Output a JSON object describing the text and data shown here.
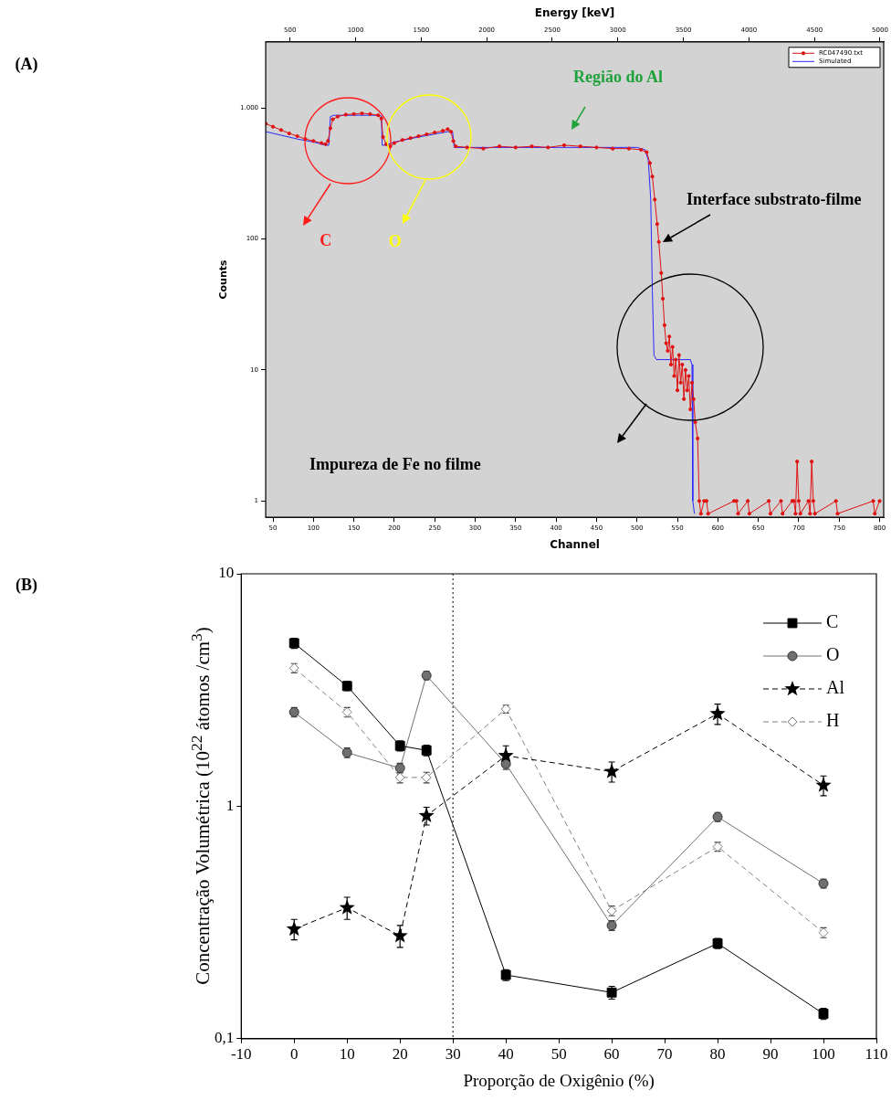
{
  "chart_data": [
    {
      "type": "line",
      "xlabel": "Channel",
      "x2label": "Energy [keV]",
      "ylabel": "Counts",
      "log": "y",
      "grid": false,
      "legend": "top right",
      "xlim": [
        41,
        805
      ],
      "xticks": [
        50,
        100,
        150,
        200,
        250,
        300,
        350,
        400,
        450,
        500,
        550,
        600,
        650,
        700,
        750,
        800
      ],
      "x2lim": [
        314,
        5028
      ],
      "x2ticks": [
        500,
        1000,
        1500,
        2000,
        2500,
        3000,
        3500,
        4000,
        4500,
        5000
      ],
      "ylim": [
        0.75,
        3200
      ],
      "yticks": [
        1,
        10,
        100,
        {
          "value": 1000,
          "label": "1.000"
        }
      ],
      "annotations": [
        "Região do Al",
        "C",
        "O",
        {
          "text": "Interface substrato-filme",
          "x": 527,
          "y": 95
        },
        "Impureza de Fe no filme",
        "(A)"
      ],
      "series": [
        {
          "name": "RC047490.txt",
          "color": "#e01010",
          "marker": "circle",
          "x": [
            41,
            50,
            60,
            70,
            80,
            90,
            100,
            110,
            115,
            118,
            121,
            124,
            130,
            140,
            150,
            160,
            170,
            180,
            184,
            186,
            190,
            195,
            200,
            210,
            220,
            230,
            240,
            250,
            260,
            266,
            270,
            273,
            276,
            290,
            310,
            330,
            350,
            370,
            390,
            410,
            430,
            450,
            470,
            490,
            505,
            512,
            516,
            519,
            522,
            525,
            527,
            530,
            532,
            534,
            536,
            538,
            540,
            542,
            544,
            546,
            548,
            550,
            552,
            554,
            556,
            558,
            560,
            562,
            564,
            566,
            568,
            570,
            572,
            575,
            577,
            579,
            583,
            586,
            588,
            620,
            623,
            625,
            637,
            639,
            663,
            665,
            678,
            680,
            692,
            694,
            696,
            698,
            700,
            702,
            712,
            714,
            716,
            718,
            720,
            746,
            748,
            792,
            794,
            800
          ],
          "values": [
            760,
            720,
            680,
            640,
            610,
            580,
            560,
            540,
            530,
            560,
            700,
            820,
            860,
            890,
            900,
            910,
            900,
            880,
            830,
            600,
            530,
            510,
            540,
            570,
            590,
            610,
            630,
            650,
            670,
            690,
            660,
            560,
            510,
            500,
            490,
            510,
            500,
            510,
            500,
            520,
            510,
            500,
            490,
            490,
            480,
            460,
            380,
            300,
            200,
            130,
            95,
            55,
            35,
            22,
            16,
            14,
            18,
            11,
            15,
            9,
            12,
            7,
            13,
            8,
            11,
            6,
            10,
            7,
            9,
            5,
            8,
            6,
            4,
            3,
            1,
            0.8,
            1,
            1,
            0.8,
            1,
            1,
            0.8,
            1,
            0.8,
            1,
            0.8,
            1,
            0.8,
            1,
            1,
            0.8,
            2,
            1,
            0.8,
            1,
            0.8,
            2,
            1,
            0.8,
            1,
            0.8,
            1,
            0.8,
            1
          ]
        },
        {
          "name": "Simulated",
          "color": "#2828ff",
          "marker": "none",
          "x": [
            41,
            60,
            80,
            100,
            115,
            119,
            121,
            125,
            180,
            184,
            185,
            190,
            200,
            230,
            266,
            272,
            274,
            300,
            400,
            500,
            510,
            514,
            517,
            519,
            521,
            524,
            566,
            568,
            569,
            571
          ],
          "values": [
            660,
            620,
            580,
            550,
            520,
            520,
            860,
            880,
            880,
            870,
            520,
            520,
            550,
            600,
            660,
            660,
            500,
            500,
            500,
            500,
            480,
            400,
            200,
            40,
            13,
            12,
            12,
            11,
            1,
            0.8
          ]
        }
      ]
    },
    {
      "type": "line",
      "annotations": [
        "(B)"
      ],
      "xlabel": "Proporção de Oxigênio (%)",
      "ylabel": "Concentração Volumétrica (10$^{22}$ átomos /cm$^{3}$)",
      "log": "y",
      "grid": false,
      "legend": "top right",
      "x": [
        0,
        10,
        20,
        25,
        40,
        60,
        80,
        100
      ],
      "xlim": [
        -10,
        110
      ],
      "xticks": [
        -10,
        0,
        10,
        20,
        30,
        40,
        50,
        60,
        70,
        80,
        90,
        100,
        110
      ],
      "ylim": [
        0.1,
        10
      ],
      "yticks": [
        {
          "value": 0.1,
          "label": "0,1"
        },
        1,
        10
      ],
      "ref_lines": [
        {
          "axis": "x",
          "value": 30,
          "line_style": "dotted",
          "color": "#000000"
        }
      ],
      "series": [
        {
          "name": "C",
          "color": "#000000",
          "marker": "square",
          "line_style": "solid",
          "values": [
            5.03,
            3.29,
            1.82,
            1.74,
            0.188,
            0.158,
            0.257,
            0.128
          ],
          "errors": [
            0.25,
            0.15,
            0.09,
            0.09,
            0.01,
            0.01,
            0.013,
            0.007
          ]
        },
        {
          "name": "O",
          "color": "#707070",
          "marker": "circle",
          "line_style": "solid",
          "values": [
            2.54,
            1.7,
            1.46,
            3.65,
            1.52,
            0.307,
            0.9,
            0.465
          ],
          "errors": [
            0.12,
            0.08,
            0.07,
            0.15,
            0.08,
            0.015,
            0.04,
            0.02
          ]
        },
        {
          "name": "Al",
          "color": "#000000",
          "marker": "star",
          "line_style": "dashed",
          "values": [
            0.296,
            0.366,
            0.277,
            0.91,
            1.65,
            1.41,
            2.5,
            1.23
          ],
          "errors": [
            0.03,
            0.04,
            0.03,
            0.08,
            0.17,
            0.14,
            0.25,
            0.12
          ]
        },
        {
          "name": "H",
          "color": "#808080",
          "marker": "diamond",
          "line_style": "dashed",
          "values": [
            3.93,
            2.54,
            1.33,
            1.33,
            2.62,
            0.355,
            0.67,
            0.286
          ],
          "errors": [
            0.18,
            0.12,
            0.07,
            0.07,
            0.1,
            0.017,
            0.03,
            0.014
          ]
        }
      ]
    }
  ]
}
